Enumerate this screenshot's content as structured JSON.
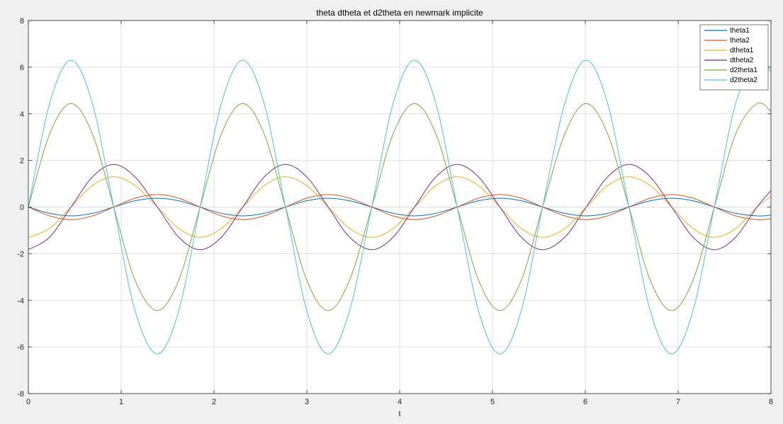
{
  "figure": {
    "background": "#f0f0f0",
    "plot_background": "#ffffff",
    "grid_color": "#dfdfdf",
    "axis_color": "#262626"
  },
  "chart_data": {
    "type": "line",
    "title": "theta dtheta et d2theta en newmark implicite",
    "xlabel": "t",
    "ylabel": "",
    "xlim": [
      0,
      8
    ],
    "ylim": [
      -8,
      8
    ],
    "x_ticks": [
      0,
      1,
      2,
      3,
      4,
      5,
      6,
      7,
      8
    ],
    "y_ticks": [
      -8,
      -6,
      -4,
      -2,
      0,
      2,
      4,
      6,
      8
    ],
    "grid": true,
    "legend_position": "top-right",
    "series": [
      {
        "name": "theta1",
        "color": "#0072bd",
        "x": [
          0,
          0.23,
          0.46,
          0.69,
          0.92,
          1.15,
          1.39,
          1.62,
          1.85,
          2.08,
          2.31,
          2.54,
          2.77,
          3.0,
          3.23,
          3.46,
          3.7,
          3.93,
          4.16,
          4.39,
          4.62,
          4.85,
          5.08,
          5.31,
          5.54,
          5.78,
          6.01,
          6.24,
          6.47,
          6.7,
          6.93,
          7.16,
          7.39,
          7.62,
          7.85,
          8.0
        ],
        "values": [
          0,
          -0.27,
          -0.38,
          -0.27,
          0,
          0.27,
          0.38,
          0.27,
          0,
          -0.27,
          -0.38,
          -0.27,
          0,
          0.27,
          0.38,
          0.27,
          0,
          -0.27,
          -0.38,
          -0.27,
          0,
          0.27,
          0.38,
          0.27,
          0,
          -0.27,
          -0.38,
          -0.27,
          0,
          0.27,
          0.38,
          0.27,
          0,
          -0.27,
          -0.38,
          -0.35
        ]
      },
      {
        "name": "theta2",
        "color": "#d95319",
        "x": [
          0,
          0.23,
          0.46,
          0.69,
          0.92,
          1.15,
          1.39,
          1.62,
          1.85,
          2.08,
          2.31,
          2.54,
          2.77,
          3.0,
          3.23,
          3.46,
          3.7,
          3.93,
          4.16,
          4.39,
          4.62,
          4.85,
          5.08,
          5.31,
          5.54,
          5.78,
          6.01,
          6.24,
          6.47,
          6.7,
          6.93,
          7.16,
          7.39,
          7.62,
          7.85,
          8.0
        ],
        "values": [
          0,
          -0.38,
          -0.54,
          -0.38,
          0,
          0.38,
          0.54,
          0.38,
          0,
          -0.38,
          -0.54,
          -0.38,
          0,
          0.38,
          0.54,
          0.38,
          0,
          -0.38,
          -0.54,
          -0.38,
          0,
          0.38,
          0.54,
          0.38,
          0,
          -0.38,
          -0.54,
          -0.38,
          0,
          0.38,
          0.54,
          0.38,
          0,
          -0.38,
          -0.54,
          -0.5
        ]
      },
      {
        "name": "dtheta1",
        "color": "#edb120",
        "x": [
          0,
          0.23,
          0.46,
          0.69,
          0.92,
          1.15,
          1.39,
          1.62,
          1.85,
          2.08,
          2.31,
          2.54,
          2.77,
          3.0,
          3.23,
          3.46,
          3.7,
          3.93,
          4.16,
          4.39,
          4.62,
          4.85,
          5.08,
          5.31,
          5.54,
          5.78,
          6.01,
          6.24,
          6.47,
          6.7,
          6.93,
          7.16,
          7.39,
          7.62,
          7.85,
          8.0
        ],
        "values": [
          -1.3,
          -0.92,
          0,
          0.92,
          1.3,
          0.92,
          0,
          -0.92,
          -1.3,
          -0.92,
          0,
          0.92,
          1.3,
          0.92,
          0,
          -0.92,
          -1.3,
          -0.92,
          0,
          0.92,
          1.3,
          0.92,
          0,
          -0.92,
          -1.3,
          -0.92,
          0,
          0.92,
          1.3,
          0.92,
          0,
          -0.92,
          -1.3,
          -0.92,
          0,
          0.45
        ]
      },
      {
        "name": "dtheta2",
        "color": "#7e2f8e",
        "x": [
          0,
          0.23,
          0.46,
          0.69,
          0.92,
          1.15,
          1.39,
          1.62,
          1.85,
          2.08,
          2.31,
          2.54,
          2.77,
          3.0,
          3.23,
          3.46,
          3.7,
          3.93,
          4.16,
          4.39,
          4.62,
          4.85,
          5.08,
          5.31,
          5.54,
          5.78,
          6.01,
          6.24,
          6.47,
          6.7,
          6.93,
          7.16,
          7.39,
          7.62,
          7.85,
          8.0
        ],
        "values": [
          -1.83,
          -1.29,
          0,
          1.29,
          1.83,
          1.29,
          0,
          -1.29,
          -1.83,
          -1.29,
          0,
          1.29,
          1.83,
          1.29,
          0,
          -1.29,
          -1.83,
          -1.29,
          0,
          1.29,
          1.83,
          1.29,
          0,
          -1.29,
          -1.83,
          -1.29,
          0,
          1.29,
          1.83,
          1.29,
          0,
          -1.29,
          -1.83,
          -1.29,
          0,
          0.7
        ]
      },
      {
        "name": "d2theta1",
        "color": "#77ac30",
        "x": [
          0,
          0.23,
          0.46,
          0.69,
          0.92,
          1.15,
          1.39,
          1.62,
          1.85,
          2.08,
          2.31,
          2.54,
          2.77,
          3.0,
          3.23,
          3.46,
          3.7,
          3.93,
          4.16,
          4.39,
          4.62,
          4.85,
          5.08,
          5.31,
          5.54,
          5.78,
          6.01,
          6.24,
          6.47,
          6.7,
          6.93,
          7.16,
          7.39,
          7.62,
          7.85,
          8.0
        ],
        "values": [
          0,
          3.14,
          4.44,
          3.14,
          0,
          -3.14,
          -4.44,
          -3.14,
          0,
          3.14,
          4.44,
          3.14,
          0,
          -3.14,
          -4.44,
          -3.14,
          0,
          3.14,
          4.44,
          3.14,
          0,
          -3.14,
          -4.44,
          -3.14,
          0,
          3.14,
          4.44,
          3.14,
          0,
          -3.14,
          -4.44,
          -3.14,
          0,
          3.14,
          4.44,
          4.1
        ]
      },
      {
        "name": "d2theta2",
        "color": "#4dbeee",
        "x": [
          0,
          0.23,
          0.46,
          0.69,
          0.92,
          1.15,
          1.39,
          1.62,
          1.85,
          2.08,
          2.31,
          2.54,
          2.77,
          3.0,
          3.23,
          3.46,
          3.7,
          3.93,
          4.16,
          4.39,
          4.62,
          4.85,
          5.08,
          5.31,
          5.54,
          5.78,
          6.01,
          6.24,
          6.47,
          6.7,
          6.93,
          7.16,
          7.39,
          7.62,
          7.85,
          8.0
        ],
        "values": [
          0,
          4.45,
          6.3,
          4.45,
          0,
          -4.45,
          -6.3,
          -4.45,
          0,
          4.45,
          6.3,
          4.45,
          0,
          -4.45,
          -6.3,
          -4.45,
          0,
          4.45,
          6.3,
          4.45,
          0,
          -4.45,
          -6.3,
          -4.45,
          0,
          4.45,
          6.3,
          4.45,
          0,
          -4.45,
          -6.3,
          -4.45,
          0,
          4.45,
          6.3,
          5.8
        ]
      }
    ]
  }
}
